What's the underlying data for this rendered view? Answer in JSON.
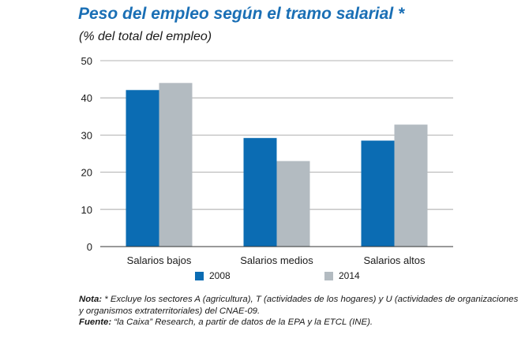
{
  "chart_data": {
    "type": "bar",
    "title": "Peso del empleo según el tramo salarial *",
    "subtitle": "(% del total del empleo)",
    "categories": [
      "Salarios bajos",
      "Salarios medios",
      "Salarios altos"
    ],
    "series": [
      {
        "name": "2008",
        "values": [
          42.1,
          29.2,
          28.5
        ],
        "color": "#0b6cb3"
      },
      {
        "name": "2014",
        "values": [
          44.0,
          23.0,
          32.8
        ],
        "color": "#b3bbc1"
      }
    ],
    "ylim": [
      0,
      50
    ],
    "yticks": [
      "0",
      "10",
      "20",
      "30",
      "40",
      "50"
    ],
    "grid": true,
    "legend_position": "bottom"
  },
  "notes": {
    "nota_label": "Nota:",
    "nota_text": " * Excluye los sectores A (agricultura), T (actividades de los hogares) y U (actividades de organizaciones y organismos extraterritoriales) del CNAE-09.",
    "fuente_label": "Fuente:",
    "fuente_text": " “la Caixa” Research, a partir de datos de la EPA y la ETCL (INE)."
  }
}
